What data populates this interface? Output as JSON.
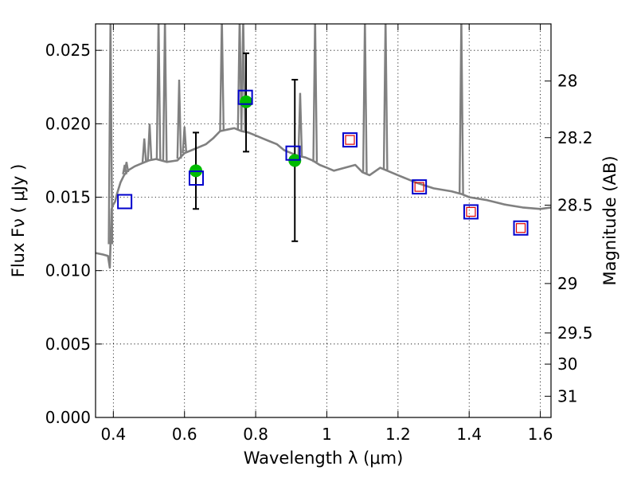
{
  "chart_data": {
    "type": "line",
    "xlabel": "Wavelength  λ (μm)",
    "ylabel": "Flux  Fν  ( μJy )",
    "ylabel_right": "Magnitude (AB)",
    "xlim": [
      0.35,
      1.63
    ],
    "ylim": [
      0.0,
      0.0268
    ],
    "grid": true,
    "x_ticks": [
      {
        "value": 0.4,
        "label": "0.4"
      },
      {
        "value": 0.6,
        "label": "0.6"
      },
      {
        "value": 0.8,
        "label": "0.8"
      },
      {
        "value": 1.0,
        "label": "1"
      },
      {
        "value": 1.2,
        "label": "1.2"
      },
      {
        "value": 1.4,
        "label": "1.4"
      },
      {
        "value": 1.6,
        "label": "1.6"
      }
    ],
    "y_ticks": [
      {
        "value": 0.0,
        "label": "0.000"
      },
      {
        "value": 0.005,
        "label": "0.005"
      },
      {
        "value": 0.01,
        "label": "0.010"
      },
      {
        "value": 0.015,
        "label": "0.015"
      },
      {
        "value": 0.02,
        "label": "0.020"
      },
      {
        "value": 0.025,
        "label": "0.025"
      }
    ],
    "right_ticks": [
      {
        "mag": 28,
        "label": "28"
      },
      {
        "mag": 28.2,
        "label": "28.2"
      },
      {
        "mag": 28.5,
        "label": "28.5"
      },
      {
        "mag": 29,
        "label": "29"
      },
      {
        "mag": 29.5,
        "label": "29.5"
      },
      {
        "mag": 30,
        "label": "30"
      },
      {
        "mag": 31,
        "label": "31"
      }
    ],
    "colors": {
      "model": "#808080",
      "observed": "#00bb00",
      "model_photometry": "#0000cc",
      "predicted": "#dd0000",
      "errorbar": "#000000"
    },
    "series": [
      {
        "name": "model_spectrum",
        "kind": "line",
        "x": [
          0.35,
          0.37,
          0.385,
          0.39,
          0.395,
          0.4,
          0.405,
          0.41,
          0.42,
          0.43,
          0.44,
          0.46,
          0.48,
          0.5,
          0.52,
          0.55,
          0.58,
          0.6,
          0.62,
          0.64,
          0.66,
          0.68,
          0.7,
          0.72,
          0.74,
          0.76,
          0.78,
          0.8,
          0.82,
          0.84,
          0.86,
          0.88,
          0.9,
          0.92,
          0.94,
          0.96,
          0.98,
          1.0,
          1.02,
          1.05,
          1.08,
          1.1,
          1.12,
          1.15,
          1.18,
          1.2,
          1.25,
          1.3,
          1.35,
          1.38,
          1.4,
          1.45,
          1.5,
          1.55,
          1.6,
          1.63
        ],
        "y": [
          0.0112,
          0.0111,
          0.011,
          0.0102,
          0.0142,
          0.0145,
          0.0147,
          0.0152,
          0.016,
          0.0165,
          0.0168,
          0.0171,
          0.0173,
          0.0175,
          0.0176,
          0.0174,
          0.0175,
          0.018,
          0.0182,
          0.0184,
          0.0186,
          0.019,
          0.0195,
          0.0196,
          0.0197,
          0.0195,
          0.0194,
          0.0192,
          0.019,
          0.0188,
          0.0186,
          0.0182,
          0.018,
          0.0178,
          0.0177,
          0.0175,
          0.0172,
          0.017,
          0.0168,
          0.017,
          0.0172,
          0.0167,
          0.0165,
          0.017,
          0.0167,
          0.0165,
          0.016,
          0.0156,
          0.0154,
          0.0152,
          0.015,
          0.0148,
          0.0145,
          0.0143,
          0.0142,
          0.0143
        ]
      },
      {
        "name": "emission_lines",
        "kind": "spikes",
        "lines": [
          {
            "x": 0.392,
            "top": 0.0268
          },
          {
            "x": 0.432,
            "top": 0.0172
          },
          {
            "x": 0.437,
            "top": 0.0174
          },
          {
            "x": 0.487,
            "top": 0.019
          },
          {
            "x": 0.502,
            "top": 0.02
          },
          {
            "x": 0.527,
            "top": 0.0268
          },
          {
            "x": 0.545,
            "top": 0.0268
          },
          {
            "x": 0.585,
            "top": 0.023
          },
          {
            "x": 0.6,
            "top": 0.0198
          },
          {
            "x": 0.705,
            "top": 0.0268
          },
          {
            "x": 0.755,
            "top": 0.0268
          },
          {
            "x": 0.765,
            "top": 0.0268
          },
          {
            "x": 0.925,
            "top": 0.0221
          },
          {
            "x": 0.967,
            "top": 0.0268
          },
          {
            "x": 1.107,
            "top": 0.0268
          },
          {
            "x": 1.165,
            "top": 0.0268
          },
          {
            "x": 1.378,
            "top": 0.0268
          }
        ]
      },
      {
        "name": "observed",
        "kind": "scatter",
        "points": [
          {
            "x": 0.632,
            "y": 0.0168,
            "yerr_low": 0.0142,
            "yerr_high": 0.0194
          },
          {
            "x": 0.773,
            "y": 0.0215,
            "yerr_low": 0.0181,
            "yerr_high": 0.0248
          },
          {
            "x": 0.91,
            "y": 0.0175,
            "yerr_low": 0.012,
            "yerr_high": 0.023
          }
        ]
      },
      {
        "name": "model_photometry",
        "kind": "open-square",
        "points": [
          {
            "x": 0.432,
            "y": 0.0147
          },
          {
            "x": 0.633,
            "y": 0.0163
          },
          {
            "x": 0.771,
            "y": 0.0218
          },
          {
            "x": 0.905,
            "y": 0.018
          },
          {
            "x": 1.065,
            "y": 0.0189
          },
          {
            "x": 1.26,
            "y": 0.0157
          },
          {
            "x": 1.405,
            "y": 0.014
          },
          {
            "x": 1.545,
            "y": 0.0129
          }
        ]
      },
      {
        "name": "predicted",
        "kind": "small-square",
        "points": [
          {
            "x": 1.065,
            "y": 0.0189
          },
          {
            "x": 1.26,
            "y": 0.0157
          },
          {
            "x": 1.405,
            "y": 0.014
          },
          {
            "x": 1.545,
            "y": 0.0129
          }
        ]
      }
    ]
  }
}
